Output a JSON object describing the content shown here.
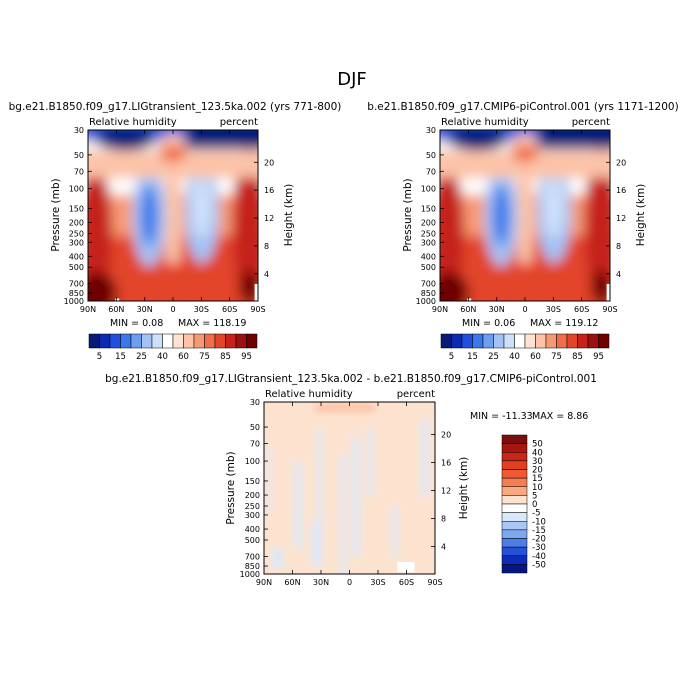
{
  "figure": {
    "title": "DJF"
  },
  "chart_data": [
    {
      "type": "heatmap",
      "title": "bg.e21.B1850.f09_g17.LIGtransient_123.5ka.002 (yrs 771-800)",
      "left_label": "Relative humidity",
      "right_label": "percent",
      "xlabel": "",
      "ylabel": "Pressure (mb)",
      "y2label": "Height (km)",
      "x_ticks": [
        "90N",
        "60N",
        "30N",
        "0",
        "30S",
        "60S",
        "90S"
      ],
      "y_ticks": [
        "1000",
        "850",
        "700",
        "500",
        "400",
        "300",
        "250",
        "200",
        "150",
        "100",
        "70",
        "50",
        "30"
      ],
      "y2_ticks": [
        "4",
        "8",
        "12",
        "16",
        "20"
      ],
      "min_text": "MIN =   0.08",
      "max_text": "MAX = 118.19"
    },
    {
      "type": "heatmap",
      "title": "b.e21.B1850.f09_g17.CMIP6-piControl.001 (yrs 1171-1200)",
      "left_label": "Relative humidity",
      "right_label": "percent",
      "xlabel": "",
      "ylabel": "Pressure (mb)",
      "y2label": "Height (km)",
      "x_ticks": [
        "90N",
        "60N",
        "30N",
        "0",
        "30S",
        "60S",
        "90S"
      ],
      "y_ticks": [
        "1000",
        "850",
        "700",
        "500",
        "400",
        "300",
        "250",
        "200",
        "150",
        "100",
        "70",
        "50",
        "30"
      ],
      "y2_ticks": [
        "4",
        "8",
        "12",
        "16",
        "20"
      ],
      "min_text": "MIN =   0.06",
      "max_text": "MAX = 119.12"
    },
    {
      "type": "heatmap",
      "title": "bg.e21.B1850.f09_g17.LIGtransient_123.5ka.002 - b.e21.B1850.f09_g17.CMIP6-piControl.001",
      "left_label": "Relative humidity",
      "right_label": "percent",
      "xlabel": "",
      "ylabel": "Pressure (mb)",
      "y2label": "Height (km)",
      "x_ticks": [
        "90N",
        "60N",
        "30N",
        "0",
        "30S",
        "60S",
        "90S"
      ],
      "y_ticks": [
        "1000",
        "850",
        "700",
        "500",
        "400",
        "300",
        "250",
        "200",
        "150",
        "100",
        "70",
        "50",
        "30"
      ],
      "y2_ticks": [
        "4",
        "8",
        "12",
        "16",
        "20"
      ],
      "min_text": "MIN = -11.33",
      "max_text": "MAX =   8.86"
    }
  ],
  "colorbars": {
    "absolute": {
      "labels": [
        "5",
        "15",
        "25",
        "40",
        "60",
        "75",
        "85",
        "95"
      ],
      "colors": [
        "#061a78",
        "#0b2bb0",
        "#1e50dd",
        "#3b78ea",
        "#6e9ef0",
        "#a3c2f5",
        "#cde0fa",
        "#ffffff",
        "#fde3d3",
        "#fcc3a7",
        "#f79a74",
        "#ef6d4a",
        "#e2452a",
        "#c5231a",
        "#9e1010",
        "#6e0000"
      ]
    },
    "difference": {
      "labels": [
        "50",
        "40",
        "30",
        "20",
        "15",
        "10",
        "5",
        "0",
        "-5",
        "-10",
        "-15",
        "-20",
        "-30",
        "-40",
        "-50"
      ],
      "colors": [
        "#7a0d0d",
        "#a8160f",
        "#c8261a",
        "#e0401f",
        "#ef5a32",
        "#f57e55",
        "#f9a880",
        "#fde3cf",
        "#ffffff",
        "#d8e8fb",
        "#a9c8f4",
        "#7ea8ee",
        "#4d7ee7",
        "#2451d6",
        "#0d2bb8",
        "#051782"
      ]
    }
  }
}
